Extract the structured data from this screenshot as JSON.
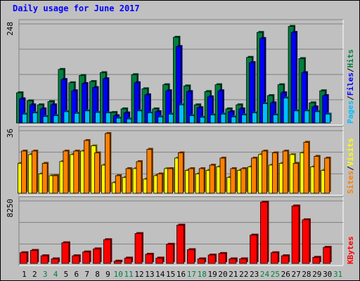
{
  "window": {
    "title": "Daily usage for June 2017",
    "title_color": "#0000ff"
  },
  "chart_data": [
    {
      "type": "bar",
      "name": "usage-panel",
      "categories": [
        "1",
        "2",
        "3",
        "4",
        "5",
        "6",
        "7",
        "8",
        "9",
        "10",
        "11",
        "12",
        "13",
        "14",
        "15",
        "16",
        "17",
        "18",
        "19",
        "20",
        "21",
        "22",
        "23",
        "24",
        "25",
        "26",
        "27",
        "28",
        "29",
        "30",
        "31"
      ],
      "weekend_days": [
        "3",
        "4",
        "10",
        "11",
        "17",
        "18",
        "24",
        "25",
        "31"
      ],
      "ylim": [
        0,
        248
      ],
      "y_tick_labels": [
        "248"
      ],
      "legend": [
        "Pages",
        "/",
        "Files",
        "/",
        "Hits"
      ],
      "series": [
        {
          "name": "Hits",
          "color": "#008040",
          "values": [
            75,
            55,
            45,
            53,
            133,
            100,
            118,
            103,
            125,
            26,
            35,
            120,
            85,
            35,
            95,
            213,
            92,
            45,
            78,
            95,
            35,
            45,
            163,
            225,
            68,
            95,
            240,
            160,
            50,
            80,
            0
          ]
        },
        {
          "name": "Files",
          "color": "#0000ff",
          "values": [
            60,
            45,
            35,
            45,
            108,
            80,
            98,
            88,
            110,
            18,
            25,
            100,
            70,
            28,
            80,
            190,
            78,
            38,
            65,
            80,
            28,
            35,
            150,
            210,
            50,
            75,
            225,
            125,
            40,
            68,
            0
          ]
        },
        {
          "name": "Pages",
          "color": "#00c0ff",
          "values": [
            22,
            25,
            16,
            18,
            28,
            24,
            30,
            26,
            25,
            12,
            10,
            30,
            25,
            15,
            22,
            45,
            18,
            14,
            20,
            22,
            15,
            20,
            25,
            48,
            20,
            62,
            30,
            30,
            28,
            22,
            0
          ]
        }
      ]
    },
    {
      "type": "bar",
      "name": "visits-panel",
      "categories": [
        "1",
        "2",
        "3",
        "4",
        "5",
        "6",
        "7",
        "8",
        "9",
        "10",
        "11",
        "12",
        "13",
        "14",
        "15",
        "16",
        "17",
        "18",
        "19",
        "20",
        "21",
        "22",
        "23",
        "24",
        "25",
        "26",
        "27",
        "28",
        "29",
        "30",
        "31"
      ],
      "ylim": [
        0,
        36
      ],
      "y_tick_labels": [
        "36"
      ],
      "legend": [
        "Sites",
        "/",
        "Visits"
      ],
      "series": [
        {
          "name": "Visits",
          "color": "#ffff00",
          "values": [
            17,
            22,
            11,
            10,
            18,
            22,
            24,
            27,
            16,
            6,
            9,
            14,
            8,
            10,
            14,
            20,
            13,
            11,
            13,
            15,
            9,
            13,
            15,
            22,
            16,
            17,
            22,
            23,
            15,
            13,
            0
          ]
        },
        {
          "name": "Sites",
          "color": "#ff8000",
          "values": [
            24,
            24,
            17,
            10,
            24,
            24,
            30,
            23,
            34,
            10,
            14,
            18,
            25,
            11,
            14,
            23,
            14,
            14,
            16,
            20,
            14,
            14,
            20,
            24,
            23,
            24,
            17,
            29,
            21,
            20,
            0
          ]
        }
      ]
    },
    {
      "type": "bar",
      "name": "kbytes-panel",
      "categories": [
        "1",
        "2",
        "3",
        "4",
        "5",
        "6",
        "7",
        "8",
        "9",
        "10",
        "11",
        "12",
        "13",
        "14",
        "15",
        "16",
        "17",
        "18",
        "19",
        "20",
        "21",
        "22",
        "23",
        "24",
        "25",
        "26",
        "27",
        "28",
        "29",
        "30",
        "31"
      ],
      "ylim": [
        0,
        8250
      ],
      "y_tick_labels": [
        "8250"
      ],
      "legend": [
        "KBytes"
      ],
      "series": [
        {
          "name": "KBytes",
          "color": "#ff0000",
          "values": [
            1400,
            1700,
            1000,
            600,
            2700,
            1000,
            1500,
            1900,
            3100,
            300,
            700,
            3900,
            1200,
            700,
            2500,
            5000,
            1800,
            600,
            1100,
            1300,
            600,
            600,
            3700,
            8000,
            1400,
            1000,
            7500,
            5700,
            800,
            2100,
            0
          ]
        }
      ]
    }
  ]
}
